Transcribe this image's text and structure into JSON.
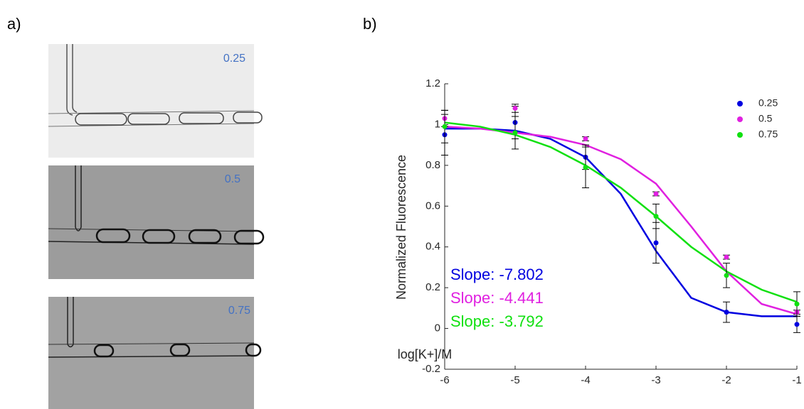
{
  "panel_labels": [
    "a)",
    "b)"
  ],
  "images": [
    {
      "label": "0.25"
    },
    {
      "label": "0.5"
    },
    {
      "label": "0.75"
    }
  ],
  "chart_data": {
    "type": "scatter",
    "xlabel": "log[K+]/M",
    "ylabel": "Normalized Fluorescence",
    "x": [
      -6,
      -5,
      -4,
      -3,
      -2,
      -1
    ],
    "fit_x": [
      -6,
      -5.5,
      -5,
      -4.5,
      -4,
      -3.5,
      -3,
      -2.5,
      -2,
      -1.5,
      -1
    ],
    "series": [
      {
        "name": "0.25",
        "color": "#0000e0",
        "values": [
          0.95,
          1.01,
          0.84,
          0.42,
          0.08,
          0.02
        ],
        "errors": [
          0.1,
          0.08,
          0.06,
          0.1,
          0.05,
          0.04
        ],
        "fit": [
          0.98,
          0.98,
          0.97,
          0.93,
          0.84,
          0.66,
          0.38,
          0.15,
          0.08,
          0.06,
          0.06
        ],
        "annotation": "Slope: -7.802"
      },
      {
        "name": "0.5",
        "color": "#e020e0",
        "values": [
          1.03,
          1.08,
          0.93,
          0.66,
          0.35,
          0.08
        ],
        "errors": [
          0.04,
          0.02,
          0.01,
          0.01,
          0.01,
          0.01
        ],
        "fit": [
          0.99,
          0.98,
          0.96,
          0.94,
          0.9,
          0.83,
          0.71,
          0.5,
          0.28,
          0.12,
          0.07
        ],
        "annotation": "Slope: -4.441"
      },
      {
        "name": "0.75",
        "color": "#10e010",
        "values": [
          0.99,
          0.96,
          0.79,
          0.55,
          0.26,
          0.12
        ],
        "errors": [
          0.08,
          0.08,
          0.1,
          0.06,
          0.06,
          0.06
        ],
        "fit": [
          1.01,
          0.99,
          0.95,
          0.89,
          0.8,
          0.69,
          0.55,
          0.4,
          0.28,
          0.19,
          0.13
        ],
        "annotation": "Slope: -3.792"
      }
    ],
    "xlim": [
      -6,
      -1
    ],
    "xticks": [
      -6,
      -5,
      -4,
      -3,
      -2,
      -1
    ],
    "ylim": [
      -0.2,
      1.2
    ],
    "yticks": [
      -0.2,
      0,
      0.2,
      0.4,
      0.6,
      0.8,
      1,
      1.2
    ],
    "legend": "upper right"
  }
}
